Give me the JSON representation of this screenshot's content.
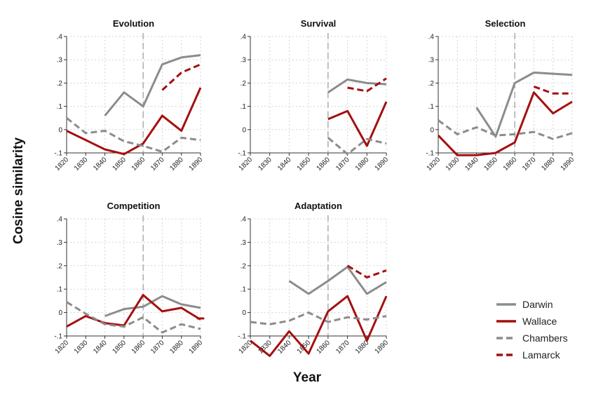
{
  "figure": {
    "xlabel": "Year",
    "ylabel": "Cosine similarity",
    "grid": true,
    "legend_position": "bottom-right"
  },
  "colors": {
    "darwin": "#8c8c8c",
    "wallace": "#a50f0f",
    "chambers": "#8c8c8c",
    "lamarck": "#a50f0f",
    "grid": "#d4d4d4",
    "axis": "#333333",
    "reference_line": "#999999"
  },
  "chart_data": [
    {
      "type": "line",
      "title": "Evolution",
      "x": [
        1820,
        1830,
        1840,
        1850,
        1860,
        1870,
        1880,
        1890
      ],
      "ylim": [
        -0.1,
        0.4
      ],
      "yticks": [
        -0.1,
        0,
        0.1,
        0.2,
        0.3,
        0.4
      ],
      "ytick_labels": [
        "-.1",
        "0",
        ".1",
        ".2",
        ".3",
        ".4"
      ],
      "reference_x": 1860,
      "series": [
        {
          "name": "Darwin",
          "key": "darwin",
          "dashed": false,
          "values": [
            null,
            null,
            0.06,
            0.16,
            0.1,
            0.28,
            0.31,
            0.32
          ]
        },
        {
          "name": "Wallace",
          "key": "wallace",
          "dashed": false,
          "values": [
            -0.005,
            -0.045,
            -0.085,
            -0.105,
            -0.06,
            0.06,
            -0.005,
            0.18
          ]
        },
        {
          "name": "Chambers",
          "key": "chambers",
          "dashed": true,
          "values": [
            0.05,
            -0.015,
            -0.005,
            -0.05,
            -0.07,
            -0.095,
            -0.035,
            -0.045
          ]
        },
        {
          "name": "Lamarck",
          "key": "lamarck",
          "dashed": true,
          "values": [
            null,
            null,
            null,
            null,
            null,
            0.17,
            0.245,
            0.28
          ]
        }
      ]
    },
    {
      "type": "line",
      "title": "Survival",
      "x": [
        1820,
        1830,
        1840,
        1850,
        1860,
        1870,
        1880,
        1890
      ],
      "ylim": [
        -0.1,
        0.4
      ],
      "yticks": [
        -0.1,
        0,
        0.1,
        0.2,
        0.3,
        0.4
      ],
      "ytick_labels": [
        "-.1",
        "0",
        ".1",
        ".2",
        ".3",
        ".4"
      ],
      "reference_x": 1860,
      "series": [
        {
          "name": "Darwin",
          "key": "darwin",
          "dashed": false,
          "values": [
            null,
            null,
            null,
            null,
            0.16,
            0.215,
            0.2,
            0.195
          ]
        },
        {
          "name": "Wallace",
          "key": "wallace",
          "dashed": false,
          "values": [
            null,
            null,
            null,
            null,
            0.045,
            0.08,
            -0.07,
            0.12
          ]
        },
        {
          "name": "Chambers",
          "key": "chambers",
          "dashed": true,
          "values": [
            null,
            null,
            null,
            null,
            -0.035,
            -0.105,
            -0.04,
            -0.06
          ]
        },
        {
          "name": "Lamarck",
          "key": "lamarck",
          "dashed": true,
          "values": [
            null,
            null,
            null,
            null,
            null,
            0.18,
            0.165,
            0.22
          ]
        }
      ]
    },
    {
      "type": "line",
      "title": "Selection",
      "x": [
        1820,
        1830,
        1840,
        1850,
        1860,
        1870,
        1880,
        1890
      ],
      "ylim": [
        -0.1,
        0.4
      ],
      "yticks": [
        -0.1,
        0,
        0.1,
        0.2,
        0.3,
        0.4
      ],
      "ytick_labels": [
        "-.1",
        "0",
        ".1",
        ".2",
        ".3",
        ".4"
      ],
      "reference_x": 1860,
      "series": [
        {
          "name": "Darwin",
          "key": "darwin",
          "dashed": false,
          "values": [
            null,
            null,
            0.095,
            -0.03,
            0.2,
            0.245,
            0.24,
            0.235
          ]
        },
        {
          "name": "Wallace",
          "key": "wallace",
          "dashed": false,
          "values": [
            -0.025,
            -0.11,
            -0.11,
            -0.1,
            -0.055,
            0.16,
            0.07,
            0.12
          ]
        },
        {
          "name": "Chambers",
          "key": "chambers",
          "dashed": true,
          "values": [
            0.04,
            -0.02,
            0.01,
            -0.025,
            -0.02,
            -0.01,
            -0.04,
            -0.015
          ]
        },
        {
          "name": "Lamarck",
          "key": "lamarck",
          "dashed": true,
          "values": [
            null,
            null,
            null,
            null,
            null,
            0.185,
            0.155,
            0.155
          ]
        }
      ]
    },
    {
      "type": "line",
      "title": "Competition",
      "x": [
        1820,
        1830,
        1840,
        1850,
        1860,
        1870,
        1880,
        1890
      ],
      "ylim": [
        -0.1,
        0.4
      ],
      "yticks": [
        -0.1,
        0,
        0.1,
        0.2,
        0.3,
        0.4
      ],
      "ytick_labels": [
        "-.1",
        "0",
        ".1",
        ".2",
        ".3",
        ".4"
      ],
      "reference_x": 1860,
      "series": [
        {
          "name": "Darwin",
          "key": "darwin",
          "dashed": false,
          "values": [
            null,
            null,
            -0.015,
            0.015,
            0.025,
            0.07,
            0.035,
            0.02
          ]
        },
        {
          "name": "Wallace",
          "key": "wallace",
          "dashed": false,
          "values": [
            -0.06,
            -0.015,
            -0.045,
            -0.055,
            0.075,
            0.005,
            0.02,
            -0.03
          ]
        },
        {
          "name": "Chambers",
          "key": "chambers",
          "dashed": true,
          "values": [
            0.045,
            -0.005,
            -0.05,
            -0.06,
            -0.02,
            -0.085,
            -0.05,
            -0.07
          ]
        },
        {
          "name": "Lamarck",
          "key": "lamarck",
          "dashed": true,
          "values": [
            null,
            null,
            null,
            null,
            null,
            null,
            null,
            -0.025
          ]
        }
      ]
    },
    {
      "type": "line",
      "title": "Adaptation",
      "x": [
        1820,
        1830,
        1840,
        1850,
        1860,
        1870,
        1880,
        1890
      ],
      "ylim": [
        -0.1,
        0.4
      ],
      "yticks": [
        -0.1,
        0,
        0.1,
        0.2,
        0.3,
        0.4
      ],
      "ytick_labels": [
        "-.1",
        "0",
        ".1",
        ".2",
        ".3",
        ".4"
      ],
      "reference_x": 1860,
      "series": [
        {
          "name": "Darwin",
          "key": "darwin",
          "dashed": false,
          "values": [
            null,
            null,
            0.135,
            0.08,
            0.135,
            0.195,
            0.08,
            0.13
          ]
        },
        {
          "name": "Wallace",
          "key": "wallace",
          "dashed": false,
          "values": [
            -0.12,
            -0.185,
            -0.08,
            -0.175,
            0.005,
            0.07,
            -0.12,
            0.07
          ]
        },
        {
          "name": "Chambers",
          "key": "chambers",
          "dashed": true,
          "values": [
            -0.04,
            -0.05,
            -0.035,
            0.0,
            -0.04,
            -0.02,
            -0.03,
            -0.015
          ]
        },
        {
          "name": "Lamarck",
          "key": "lamarck",
          "dashed": true,
          "values": [
            null,
            null,
            null,
            null,
            null,
            0.2,
            0.15,
            0.18
          ]
        }
      ]
    }
  ],
  "legend": [
    {
      "name": "Darwin",
      "key": "darwin",
      "dashed": false
    },
    {
      "name": "Wallace",
      "key": "wallace",
      "dashed": false
    },
    {
      "name": "Chambers",
      "key": "chambers",
      "dashed": true
    },
    {
      "name": "Lamarck",
      "key": "lamarck",
      "dashed": true
    }
  ]
}
